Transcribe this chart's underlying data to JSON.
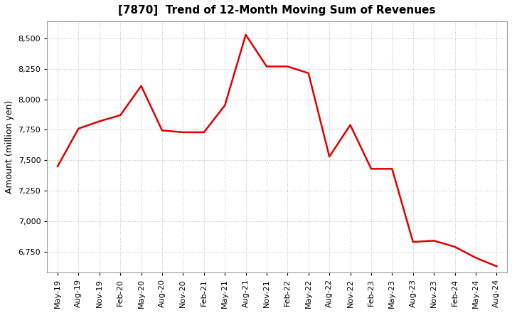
{
  "title": "[7870]  Trend of 12-Month Moving Sum of Revenues",
  "ylabel": "Amount (million yen)",
  "background_color": "#ffffff",
  "plot_bg_color": "#ffffff",
  "grid_color": "#bbbbbb",
  "line_color": "#dd0000",
  "line_width": 1.8,
  "x_labels": [
    "May-19",
    "Aug-19",
    "Nov-19",
    "Feb-20",
    "May-20",
    "Aug-20",
    "Nov-20",
    "Feb-21",
    "May-21",
    "Aug-21",
    "Nov-21",
    "Feb-22",
    "May-22",
    "Aug-22",
    "Nov-22",
    "Feb-23",
    "May-23",
    "Aug-23",
    "Nov-23",
    "Feb-24",
    "May-24",
    "Aug-24"
  ],
  "ylim": [
    6580,
    8640
  ],
  "yticks": [
    6750,
    7000,
    7250,
    7500,
    7750,
    8000,
    8250,
    8500
  ],
  "data_values": [
    7450,
    7760,
    7820,
    7870,
    8110,
    7745,
    7730,
    7730,
    7950,
    8530,
    8270,
    8270,
    8215,
    7530,
    7790,
    7430,
    7430,
    6830,
    6840,
    6790,
    6700,
    6630
  ],
  "title_fontsize": 11,
  "tick_fontsize": 8,
  "ylabel_fontsize": 9
}
